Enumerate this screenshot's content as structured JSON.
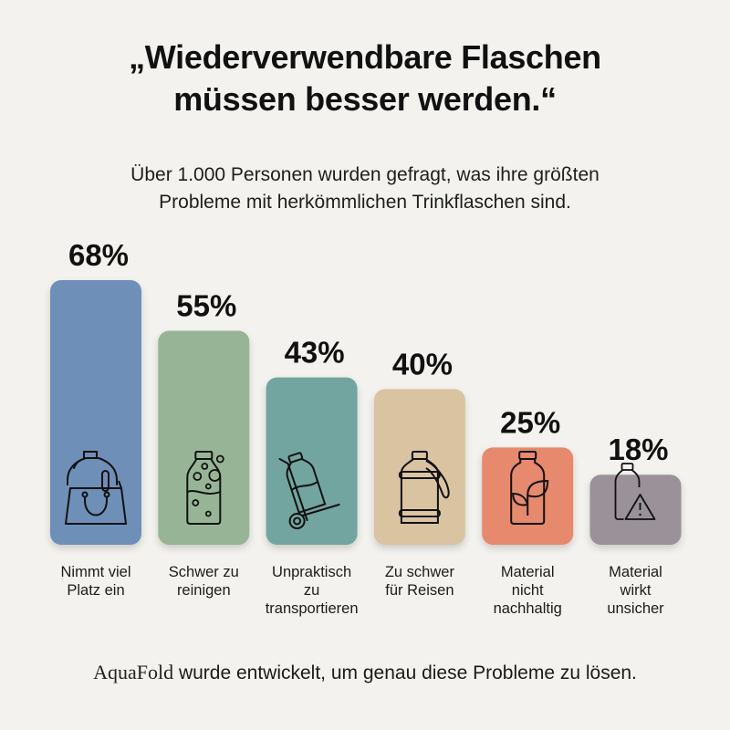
{
  "header": {
    "title_line1": "„Wiederverwendbare Flaschen",
    "title_line2": "müssen besser werden.“",
    "subtitle_line1": "Über 1.000 Personen wurden gefragt, was ihre größten",
    "subtitle_line2": "Probleme mit herkömmlichen Trinkflaschen sind."
  },
  "chart_data": {
    "type": "bar",
    "title": "„Wiederverwendbare Flaschen müssen besser werden.“",
    "subtitle": "Über 1.000 Personen wurden gefragt, was ihre größten Probleme mit herkömmlichen Trinkflaschen sind.",
    "xlabel": "",
    "ylabel": "",
    "unit": "%",
    "ylim": [
      0,
      68
    ],
    "grid": false,
    "legend": "none",
    "categories": [
      [
        "Nimmt viel",
        "Platz ein"
      ],
      [
        "Schwer zu",
        "reinigen"
      ],
      [
        "Unpraktisch",
        "zu",
        "transportieren"
      ],
      [
        "Zu schwer",
        "für Reisen"
      ],
      [
        "Material",
        "nicht",
        "nachhaltig"
      ],
      [
        "Material",
        "wirkt",
        "unsicher"
      ]
    ],
    "values": [
      68,
      55,
      43,
      40,
      25,
      18
    ],
    "value_labels": [
      "68%",
      "55%",
      "43%",
      "40%",
      "25%",
      "18%"
    ],
    "colors": [
      "#6e8fb8",
      "#97b596",
      "#73a5a0",
      "#d9c3a1",
      "#e6896c",
      "#9a9199"
    ],
    "icons": [
      "bottle-in-bag-icon",
      "bottle-bubbles-icon",
      "hand-truck-bottle-icon",
      "jug-with-strap-icon",
      "bottle-leaf-icon",
      "bottle-warning-icon"
    ]
  },
  "footer": {
    "brand": "AquaFold",
    "text": " wurde entwickelt, um genau diese Probleme zu lösen."
  }
}
